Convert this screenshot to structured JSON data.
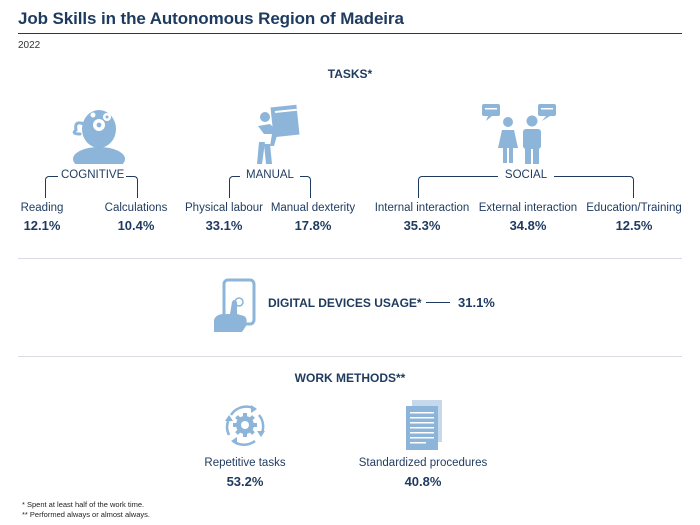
{
  "header": {
    "title": "Job Skills in the Autonomous Region of Madeira",
    "year": "2022"
  },
  "tasks": {
    "heading": "TASKS*",
    "groups": [
      {
        "name": "COGNITIVE",
        "icon": "head-with-gears-icon",
        "items": [
          {
            "label": "Reading",
            "value": "12.1%"
          },
          {
            "label": "Calculations",
            "value": "10.4%"
          }
        ]
      },
      {
        "name": "MANUAL",
        "icon": "person-carrying-boxes-icon",
        "items": [
          {
            "label": "Physical labour",
            "value": "33.1%"
          },
          {
            "label": "Manual dexterity",
            "value": "17.8%"
          }
        ]
      },
      {
        "name": "SOCIAL",
        "icon": "people-talking-icon",
        "items": [
          {
            "label": "Internal interaction",
            "value": "35.3%"
          },
          {
            "label": "External interaction",
            "value": "34.8%"
          },
          {
            "label": "Education/Training",
            "value": "12.5%"
          }
        ]
      }
    ]
  },
  "digital": {
    "label": "DIGITAL DEVICES USAGE*",
    "value": "31.1%",
    "icon": "hand-tapping-tablet-icon"
  },
  "work_methods": {
    "heading": "WORK METHODS**",
    "items": [
      {
        "label": "Repetitive tasks",
        "value": "53.2%",
        "icon": "gear-cycle-icon"
      },
      {
        "label": "Standardized procedures",
        "value": "40.8%",
        "icon": "documents-icon"
      }
    ]
  },
  "footnotes": {
    "note1": "* Spent at least half of the work time.",
    "note2": "** Performed always or almost always."
  },
  "colors": {
    "primary": "#1e3a5f",
    "icon": "#8db4d9",
    "divider": "#d9dde3"
  }
}
